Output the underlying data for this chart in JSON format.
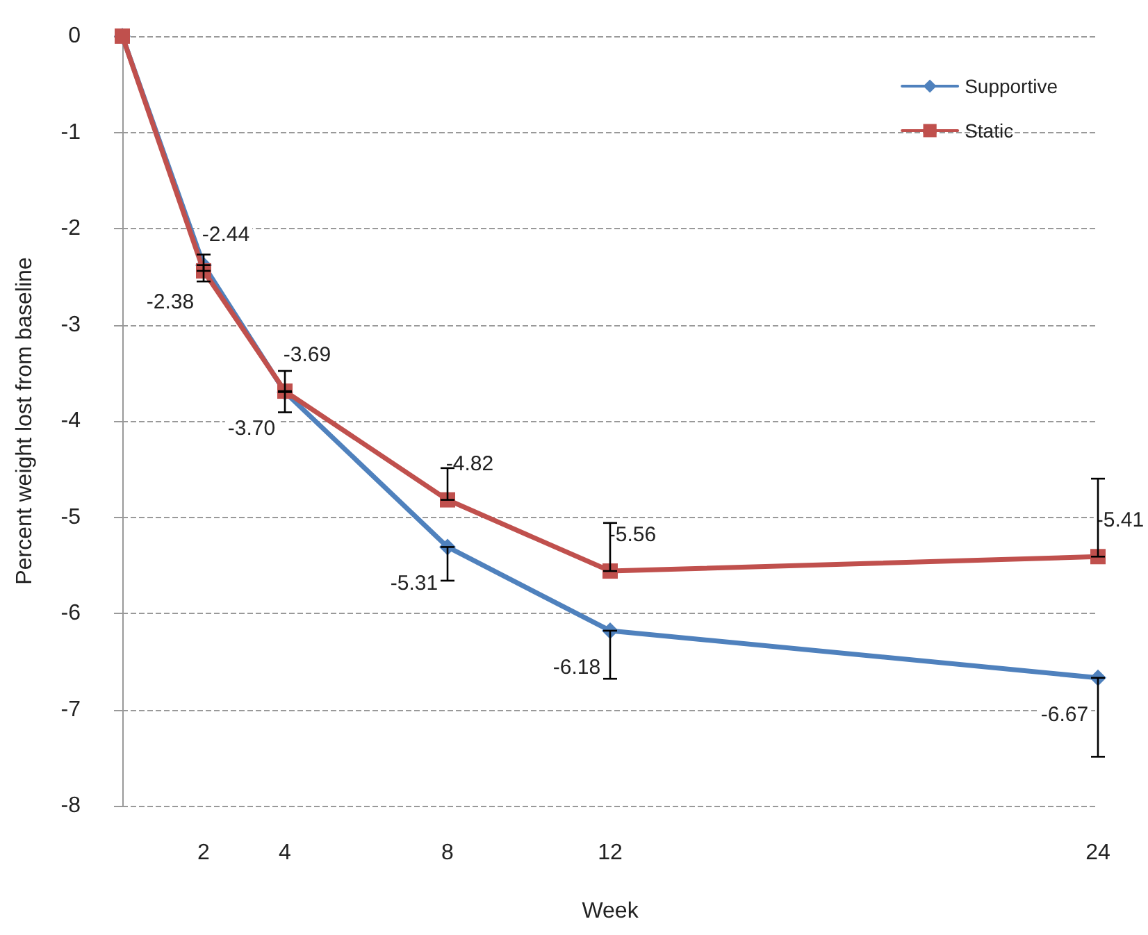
{
  "chart_data": {
    "type": "line",
    "xlabel": "Week",
    "ylabel": "Percent weight lost from baseline",
    "x": [
      0,
      2,
      4,
      8,
      12,
      24
    ],
    "xlim": [
      0,
      24
    ],
    "xticks": [
      2,
      4,
      8,
      12,
      24
    ],
    "ylim": [
      -8,
      0
    ],
    "yticks": [
      0,
      -1,
      -2,
      -3,
      -4,
      -5,
      -6,
      -7,
      -8
    ],
    "grid": "y",
    "legend": "top right",
    "series": [
      {
        "name": "Supportive",
        "color": "#4f81bd",
        "marker": "diamond",
        "values": [
          0,
          -2.38,
          -3.7,
          -5.31,
          -6.18,
          -6.67
        ],
        "value_labels": [
          null,
          "-2.38",
          "-3.70",
          "-5.31",
          "-6.18",
          "-6.67"
        ],
        "errors": [
          null,
          [
            -2.55,
            -2.38
          ],
          [
            -3.91,
            -3.7
          ],
          [
            -5.66,
            -5.31
          ],
          [
            -6.68,
            -6.18
          ],
          [
            -7.49,
            -6.67
          ]
        ]
      },
      {
        "name": "Static",
        "color": "#c0504d",
        "marker": "square",
        "values": [
          0,
          -2.44,
          -3.69,
          -4.82,
          -5.56,
          -5.41
        ],
        "value_labels": [
          null,
          "-2.44",
          "-3.69",
          "-4.82",
          "-5.56",
          "-5.41"
        ],
        "errors": [
          null,
          [
            -2.44,
            -2.27
          ],
          [
            -3.69,
            -3.48
          ],
          [
            -4.82,
            -4.49
          ],
          [
            -5.56,
            -5.06
          ],
          [
            -5.41,
            -4.6
          ]
        ]
      }
    ]
  }
}
